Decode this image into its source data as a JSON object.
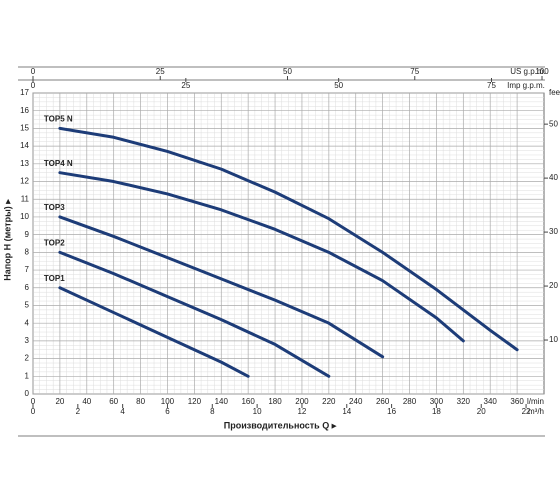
{
  "chart_data": {
    "type": "line",
    "y_label": "Напор H (метры) ▸",
    "x_label": "Производительность Q ▸",
    "x_unit": "l/min",
    "xlim": [
      0,
      380
    ],
    "ylim": [
      0,
      17
    ],
    "xticks": [
      0,
      20,
      40,
      60,
      80,
      100,
      120,
      140,
      160,
      180,
      200,
      220,
      240,
      260,
      280,
      300,
      320,
      340,
      360
    ],
    "yticks": [
      0,
      1,
      2,
      3,
      4,
      5,
      6,
      7,
      8,
      9,
      10,
      11,
      12,
      13,
      14,
      15,
      16,
      17
    ],
    "grid": true,
    "secondary_axes": [
      {
        "position": "top",
        "label": "US g.p.m.",
        "lim": [
          0,
          100.39
        ],
        "ticks": [
          0,
          25,
          50,
          75,
          100
        ]
      },
      {
        "position": "top-inner",
        "label": "Imp g.p.m.",
        "lim": [
          0,
          83.59
        ],
        "ticks": [
          0,
          25,
          50,
          75
        ]
      },
      {
        "position": "bottom-inner",
        "label": "m³/h",
        "lim": [
          0,
          22.8
        ],
        "ticks": [
          0,
          2,
          4,
          6,
          8,
          10,
          12,
          14,
          16,
          18,
          20,
          22
        ]
      },
      {
        "position": "right",
        "label": "feet",
        "lim": [
          0,
          55.77
        ],
        "ticks": [
          10,
          20,
          30,
          40,
          50
        ]
      }
    ],
    "series": [
      {
        "name": "TOP5 N",
        "color": "#1d3c78",
        "x": [
          20,
          60,
          100,
          140,
          180,
          220,
          260,
          300,
          340,
          360
        ],
        "values": [
          15,
          14.5,
          13.7,
          12.7,
          11.4,
          9.9,
          8.0,
          5.9,
          3.6,
          2.5
        ]
      },
      {
        "name": "TOP4 N",
        "color": "#1d3c78",
        "x": [
          20,
          60,
          100,
          140,
          180,
          220,
          260,
          300,
          320
        ],
        "values": [
          12.5,
          12.0,
          11.3,
          10.4,
          9.3,
          8.0,
          6.4,
          4.3,
          3.0
        ]
      },
      {
        "name": "TOP3",
        "color": "#1d3c78",
        "x": [
          20,
          60,
          100,
          140,
          180,
          220,
          260
        ],
        "values": [
          10,
          8.9,
          7.7,
          6.5,
          5.3,
          4.0,
          2.1
        ]
      },
      {
        "name": "TOP2",
        "color": "#1d3c78",
        "x": [
          20,
          60,
          100,
          140,
          180,
          220
        ],
        "values": [
          8,
          6.8,
          5.5,
          4.2,
          2.8,
          1.0
        ]
      },
      {
        "name": "TOP1",
        "color": "#1d3c78",
        "x": [
          20,
          60,
          100,
          140,
          160
        ],
        "values": [
          6,
          4.6,
          3.2,
          1.8,
          1.0
        ]
      }
    ]
  }
}
